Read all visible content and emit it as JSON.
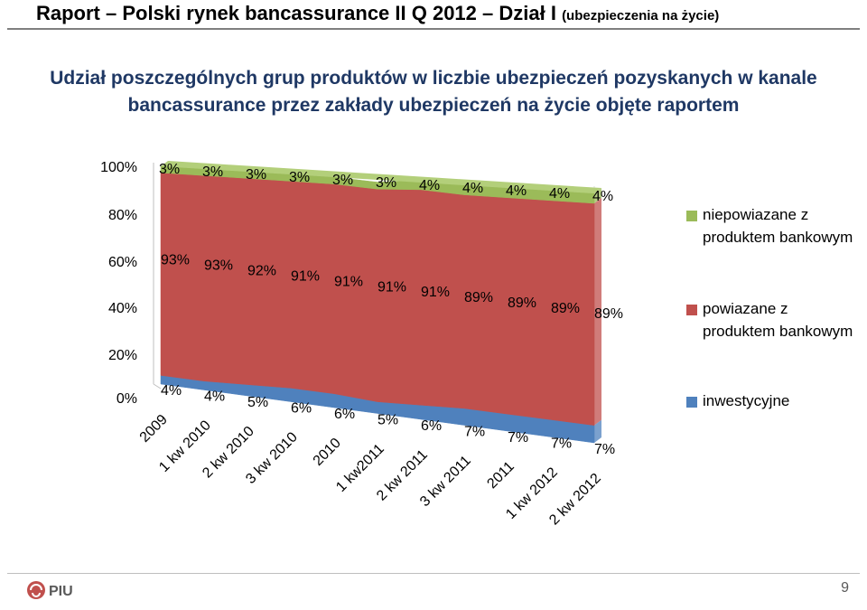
{
  "header": {
    "title": "Raport – Polski rynek bancassurance II Q 2012 – Dział I",
    "subtitle": "(ubezpieczenia na życie)"
  },
  "chart_data": {
    "type": "area",
    "stacked_percent": true,
    "three_d": true,
    "title": "Udział poszczególnych grup produktów w liczbie ubezpieczeń pozyskanych w kanale bancassurance przez zakłady ubezpieczeń na życie objęte raportem",
    "categories": [
      "2009",
      "1 kw 2010",
      "2 kw 2010",
      "3 kw 2010",
      "2010",
      "1 kw2011",
      "2 kw 2011",
      "3 kw 2011",
      "2011",
      "1 kw 2012",
      "2 kw 2012"
    ],
    "y_ticks": [
      "0%",
      "20%",
      "40%",
      "60%",
      "80%",
      "100%"
    ],
    "ylim": [
      0,
      100
    ],
    "series": [
      {
        "name": "inwestycyjne",
        "color": "#4f81bd",
        "values": [
          4,
          4,
          5,
          6,
          6,
          5,
          6,
          7,
          7,
          7,
          7
        ],
        "labels": [
          "4%",
          "4%",
          "5%",
          "6%",
          "6%",
          "5%",
          "6%",
          "7%",
          "7%",
          "7%",
          "7%"
        ]
      },
      {
        "name": "powiazane z produktem bankowym",
        "color": "#c0504d",
        "values": [
          93,
          93,
          92,
          91,
          91,
          91,
          91,
          89,
          89,
          89,
          89
        ],
        "labels": [
          "93%",
          "93%",
          "92%",
          "91%",
          "91%",
          "91%",
          "91%",
          "89%",
          "89%",
          "89%",
          "89%"
        ]
      },
      {
        "name": "niepowiazane z produktem bankowym",
        "color": "#9bbb59",
        "values": [
          3,
          3,
          3,
          3,
          3,
          3,
          4,
          4,
          4,
          4,
          4
        ],
        "labels": [
          "3%",
          "3%",
          "3%",
          "3%",
          "3%",
          "3%",
          "4%",
          "4%",
          "4%",
          "4%",
          "4%"
        ]
      }
    ],
    "legend": {
      "position": "right",
      "order": [
        "niepowiazane z produktem bankowym",
        "powiazane z produktem bankowym",
        "inwestycyjne"
      ]
    }
  },
  "legend_labels": {
    "green": "niepowiazane z produktem bankowym",
    "red": "powiazane z produktem bankowym",
    "blue": "inwestycyjne"
  },
  "footer": {
    "logo_text": "PIU",
    "page_number": "9"
  }
}
